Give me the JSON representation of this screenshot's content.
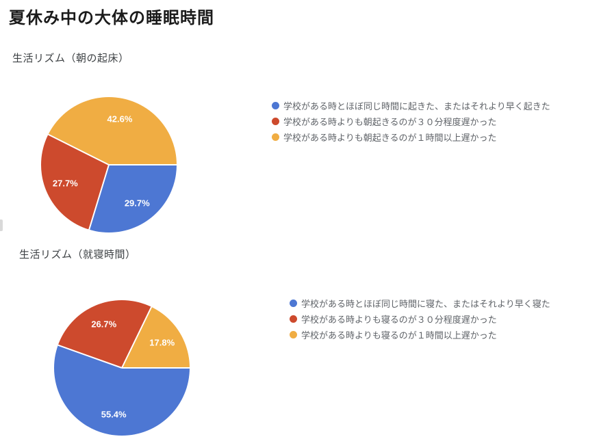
{
  "page": {
    "title": "夏休み中の大体の睡眠時間"
  },
  "palette": {
    "blue": "#4d77d3",
    "red": "#cd4a2d",
    "yellow": "#f0ad43",
    "slice_label_text": "#ffffff",
    "legend_text": "#5f6368"
  },
  "chart_data": [
    {
      "type": "pie",
      "title": "生活リズム（朝の起床）",
      "start_angle_deg": 90,
      "direction": "clockwise",
      "legend_position": "right",
      "slices": [
        {
          "label": "学校がある時とほぼ同じ時間に起きた、またはそれより早く起きた",
          "value": 29.7,
          "display": "29.7%",
          "color": "#4d77d3"
        },
        {
          "label": "学校がある時よりも朝起きるのが３０分程度遅かった",
          "value": 27.7,
          "display": "27.7%",
          "color": "#cd4a2d"
        },
        {
          "label": "学校がある時よりも朝起きるのが１時間以上遅かった",
          "value": 42.6,
          "display": "42.6%",
          "color": "#f0ad43"
        }
      ]
    },
    {
      "type": "pie",
      "title": "生活リズム（就寝時間）",
      "start_angle_deg": 90,
      "direction": "clockwise",
      "legend_position": "right",
      "slices": [
        {
          "label": "学校がある時とほぼ同じ時間に寝た、またはそれより早く寝た",
          "value": 55.4,
          "display": "55.4%",
          "color": "#4d77d3"
        },
        {
          "label": "学校がある時よりも寝るのが３０分程度遅かった",
          "value": 26.7,
          "display": "26.7%",
          "color": "#cd4a2d"
        },
        {
          "label": "学校がある時よりも寝るのが１時間以上遅かった",
          "value": 17.8,
          "display": "17.8%",
          "color": "#f0ad43"
        }
      ]
    }
  ]
}
